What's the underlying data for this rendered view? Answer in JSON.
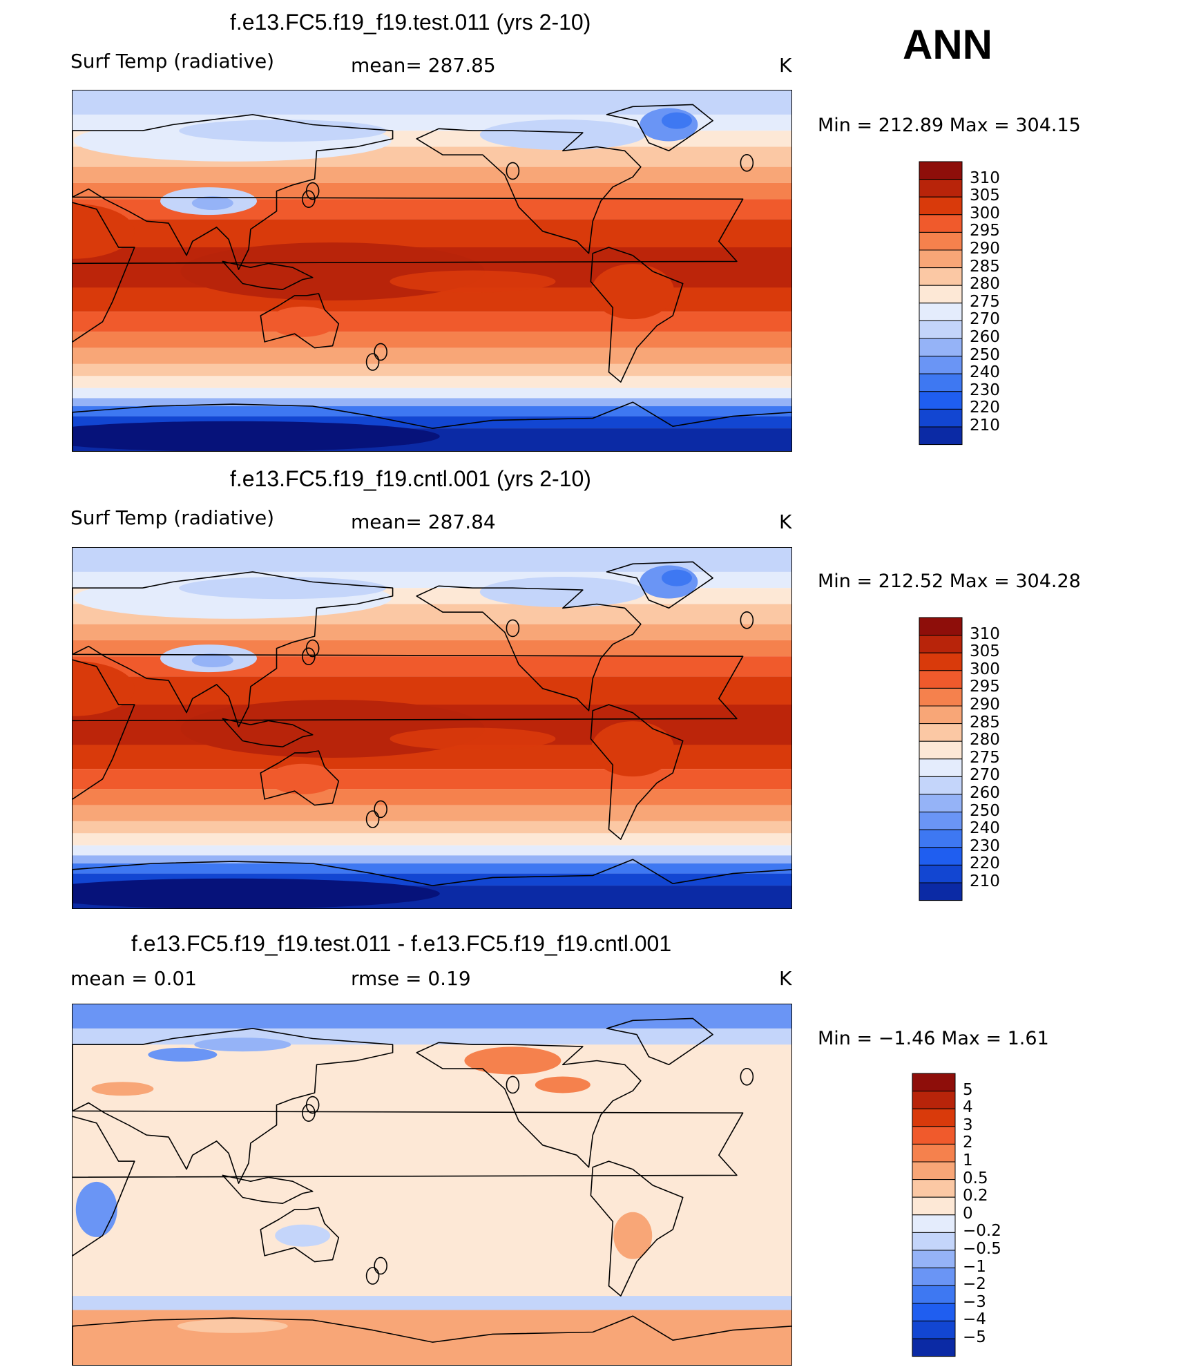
{
  "season": "ANN",
  "colors": {
    "abs_palette": [
      "#06127a",
      "#0b2aa5",
      "#1246d2",
      "#1f5ef0",
      "#3e78f2",
      "#6a95f5",
      "#95b3f7",
      "#c4d5fa",
      "#e4ecfc",
      "#fde8d6",
      "#fbc8a4",
      "#f8a677",
      "#f5814d",
      "#f05a2c",
      "#d93a0b",
      "#b8240a",
      "#8e0e0a"
    ],
    "diff_palette": [
      "#06127a",
      "#0b2aa5",
      "#1246d2",
      "#1f5ef0",
      "#3e78f2",
      "#6a95f5",
      "#95b3f7",
      "#c4d5fa",
      "#e4ecfc",
      "#fde8d6",
      "#fbc8a4",
      "#f8a677",
      "#f5814d",
      "#f05a2c",
      "#d93a0b",
      "#b8240a",
      "#8e0e0a"
    ]
  },
  "panels": [
    {
      "title": "f.e13.FC5.f19_f19.test.011 (yrs 2-10)",
      "left_label": "Surf Temp  (radiative)",
      "center_label": "mean=  287.85",
      "unit": "K",
      "minmax": "Min  =  212.89  Max  =  304.15"
    },
    {
      "title": "f.e13.FC5.f19_f19.cntl.001 (yrs 2-10)",
      "left_label": "Surf Temp  (radiative)",
      "center_label": "mean=  287.84",
      "unit": "K",
      "minmax": "Min  =  212.52  Max  =  304.28"
    },
    {
      "title": "f.e13.FC5.f19_f19.test.011 - f.e13.FC5.f19_f19.cntl.001",
      "left_label": "mean  =      0.01",
      "center_label": "rmse  =      0.19",
      "unit": "K",
      "minmax": "Min  =     −1.46  Max  =       1.61"
    }
  ],
  "chart_data": [
    {
      "type": "heatmap",
      "title": "f.e13.FC5.f19_f19.test.011 (yrs 2-10)",
      "variable": "Surf Temp  (radiative)",
      "unit": "K",
      "mean": 287.85,
      "min": 212.89,
      "max": 304.15,
      "colorbar_levels": [
        "310",
        "305",
        "300",
        "295",
        "290",
        "285",
        "280",
        "275",
        "270",
        "260",
        "250",
        "240",
        "230",
        "220",
        "210"
      ]
    },
    {
      "type": "heatmap",
      "title": "f.e13.FC5.f19_f19.cntl.001 (yrs 2-10)",
      "variable": "Surf Temp  (radiative)",
      "unit": "K",
      "mean": 287.84,
      "min": 212.52,
      "max": 304.28,
      "colorbar_levels": [
        "310",
        "305",
        "300",
        "295",
        "290",
        "285",
        "280",
        "275",
        "270",
        "260",
        "250",
        "240",
        "230",
        "220",
        "210"
      ]
    },
    {
      "type": "heatmap",
      "title": "f.e13.FC5.f19_f19.test.011 - f.e13.FC5.f19_f19.cntl.001",
      "unit": "K",
      "mean": 0.01,
      "rmse": 0.19,
      "min": -1.46,
      "max": 1.61,
      "colorbar_levels": [
        "5",
        "4",
        "3",
        "2",
        "1",
        "0.5",
        "0.2",
        "0",
        "−0.2",
        "−0.5",
        "−1",
        "−2",
        "−3",
        "−4",
        "−5"
      ]
    }
  ]
}
